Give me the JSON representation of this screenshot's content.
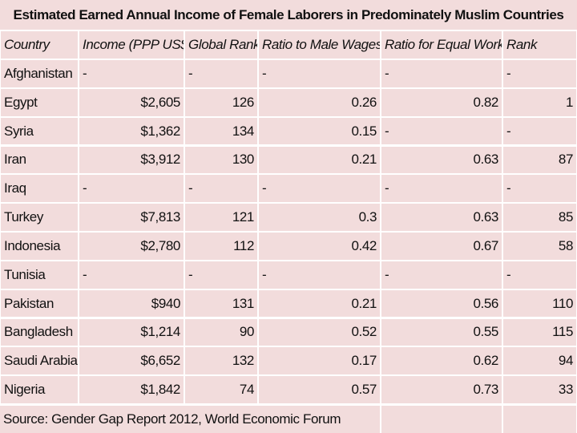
{
  "title": "Estimated Earned Annual Income of Female Laborers in Predominately Muslim Countries",
  "table": {
    "header": [
      "Country",
      "Income (PPP US$)",
      "Global Rank",
      "Ratio to Male Wages",
      "Ratio for Equal Work",
      "Rank"
    ],
    "rows": [
      [
        "Afghanistan",
        "-",
        "-",
        "-",
        "-",
        "-"
      ],
      [
        "Egypt",
        "$2,605",
        "126",
        "0.26",
        "0.82",
        "1"
      ],
      [
        "Syria",
        "$1,362",
        "134",
        "0.15",
        "-",
        "-"
      ],
      [
        "Iran",
        "$3,912",
        "130",
        "0.21",
        "0.63",
        "87"
      ],
      [
        "Iraq",
        "-",
        "-",
        "-",
        "-",
        "-"
      ],
      [
        "Turkey",
        "$7,813",
        "121",
        "0.3",
        "0.63",
        "85"
      ],
      [
        "Indonesia",
        "$2,780",
        "112",
        "0.42",
        "0.67",
        "58"
      ],
      [
        "Tunisia",
        "-",
        "-",
        "-",
        "-",
        "-"
      ],
      [
        "Pakistan",
        "$940",
        "131",
        "0.21",
        "0.56",
        "110"
      ],
      [
        "Bangladesh",
        "$1,214",
        "90",
        "0.52",
        "0.55",
        "115"
      ],
      [
        "Saudi Arabia",
        "$6,652",
        "132",
        "0.17",
        "0.62",
        "94"
      ],
      [
        "Nigeria",
        "$1,842",
        "74",
        "0.57",
        "0.73",
        "33"
      ]
    ]
  },
  "source": "Source: Gender Gap Report 2012, World Economic Forum"
}
